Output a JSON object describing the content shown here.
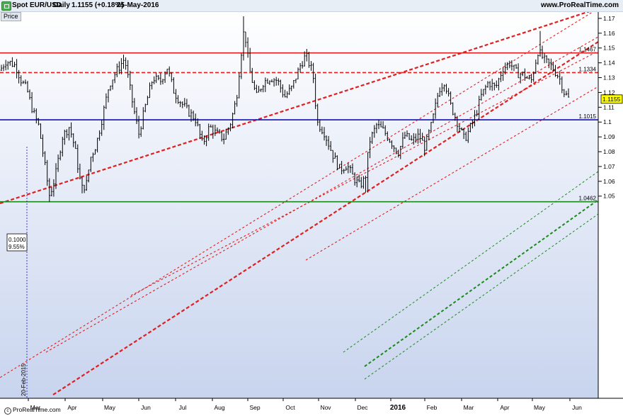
{
  "header": {
    "instrument": "Spot EUR/USD",
    "period": "Daily",
    "price_change": "1.1155 (+0.18%)",
    "date": "25-May-2016",
    "site": "www.ProRealTime.com",
    "price_tab": "Price",
    "footer": "ProRealTime.com"
  },
  "colors": {
    "background_top": "#ffffff",
    "background_bottom": "#c8d4ee",
    "candles": "#000000",
    "resistance": "#e02020",
    "support_blue": "#1010c0",
    "support_green": "#1a8a1a",
    "channel_red": "#e02020",
    "channel_green": "#1a8a1a"
  },
  "chart_data": {
    "type": "candlestick",
    "x_labels": [
      "Mar",
      "Apr",
      "May",
      "Jun",
      "Jul",
      "Aug",
      "Sep",
      "Oct",
      "Nov",
      "Dec",
      "2016",
      "Feb",
      "Mar",
      "Apr",
      "May",
      "Jun"
    ],
    "x_labels_bold": [
      "2016"
    ],
    "y_ticks": [
      "1.05",
      "1.06",
      "1.07",
      "1.08",
      "1.09",
      "1.1",
      "1.11",
      "1.12",
      "1.13",
      "1.14",
      "1.15",
      "1.16",
      "1.17"
    ],
    "ylim": [
      1.0455,
      1.1738
    ],
    "price_labels": [
      {
        "text": "1.1467",
        "value": 1.1467,
        "style": "plain"
      },
      {
        "text": "1.1334",
        "value": 1.1334,
        "style": "plain"
      },
      {
        "text": "1.1155",
        "value": 1.1155,
        "style": "current"
      },
      {
        "text": "1.1015",
        "value": 1.1015,
        "style": "plain"
      },
      {
        "text": "1.0462",
        "value": 1.0462,
        "style": "plain"
      }
    ],
    "horizontal_lines": [
      {
        "value": 1.1467,
        "color": "red",
        "dash": "solid"
      },
      {
        "value": 1.1334,
        "color": "red",
        "dash": "dashed"
      },
      {
        "value": 1.1015,
        "color": "blue",
        "dash": "solid"
      },
      {
        "value": 1.0462,
        "color": "green",
        "dash": "solid"
      }
    ],
    "fib_box": {
      "lines": [
        "0.1000",
        "9.55%"
      ]
    },
    "vertical_marker": {
      "label": "20-Feb-2015"
    },
    "waypoints": [
      [
        0,
        1.135
      ],
      [
        8,
        1.141
      ],
      [
        15,
        1.14
      ],
      [
        22,
        1.138
      ],
      [
        30,
        1.128
      ],
      [
        38,
        1.122
      ],
      [
        46,
        1.108
      ],
      [
        55,
        1.097
      ],
      [
        62,
        1.075
      ],
      [
        70,
        1.05
      ],
      [
        78,
        1.063
      ],
      [
        88,
        1.09
      ],
      [
        98,
        1.097
      ],
      [
        106,
        1.082
      ],
      [
        115,
        1.055
      ],
      [
        122,
        1.058
      ],
      [
        128,
        1.076
      ],
      [
        136,
        1.085
      ],
      [
        144,
        1.102
      ],
      [
        154,
        1.125
      ],
      [
        164,
        1.134
      ],
      [
        176,
        1.143
      ],
      [
        186,
        1.116
      ],
      [
        196,
        1.092
      ],
      [
        206,
        1.112
      ],
      [
        216,
        1.13
      ],
      [
        226,
        1.127
      ],
      [
        236,
        1.137
      ],
      [
        246,
        1.12
      ],
      [
        256,
        1.113
      ],
      [
        266,
        1.107
      ],
      [
        276,
        1.102
      ],
      [
        286,
        1.085
      ],
      [
        296,
        1.097
      ],
      [
        306,
        1.092
      ],
      [
        316,
        1.089
      ],
      [
        326,
        1.1
      ],
      [
        334,
        1.116
      ],
      [
        340,
        1.144
      ],
      [
        345,
        1.164
      ],
      [
        352,
        1.136
      ],
      [
        362,
        1.117
      ],
      [
        372,
        1.127
      ],
      [
        382,
        1.13
      ],
      [
        392,
        1.128
      ],
      [
        402,
        1.117
      ],
      [
        412,
        1.123
      ],
      [
        424,
        1.138
      ],
      [
        432,
        1.145
      ],
      [
        442,
        1.133
      ],
      [
        448,
        1.1
      ],
      [
        458,
        1.093
      ],
      [
        470,
        1.078
      ],
      [
        480,
        1.068
      ],
      [
        490,
        1.071
      ],
      [
        500,
        1.062
      ],
      [
        508,
        1.057
      ],
      [
        516,
        1.062
      ],
      [
        522,
        1.087
      ],
      [
        532,
        1.098
      ],
      [
        542,
        1.094
      ],
      [
        552,
        1.087
      ],
      [
        562,
        1.079
      ],
      [
        572,
        1.091
      ],
      [
        582,
        1.087
      ],
      [
        592,
        1.091
      ],
      [
        600,
        1.083
      ],
      [
        610,
        1.099
      ],
      [
        620,
        1.122
      ],
      [
        628,
        1.128
      ],
      [
        636,
        1.112
      ],
      [
        646,
        1.1
      ],
      [
        656,
        1.088
      ],
      [
        664,
        1.096
      ],
      [
        672,
        1.105
      ],
      [
        680,
        1.118
      ],
      [
        690,
        1.127
      ],
      [
        700,
        1.123
      ],
      [
        710,
        1.136
      ],
      [
        720,
        1.14
      ],
      [
        730,
        1.133
      ],
      [
        740,
        1.132
      ],
      [
        750,
        1.127
      ],
      [
        760,
        1.148
      ],
      [
        770,
        1.141
      ],
      [
        780,
        1.137
      ],
      [
        790,
        1.13
      ],
      [
        797,
        1.12
      ],
      [
        803,
        1.116
      ]
    ]
  }
}
